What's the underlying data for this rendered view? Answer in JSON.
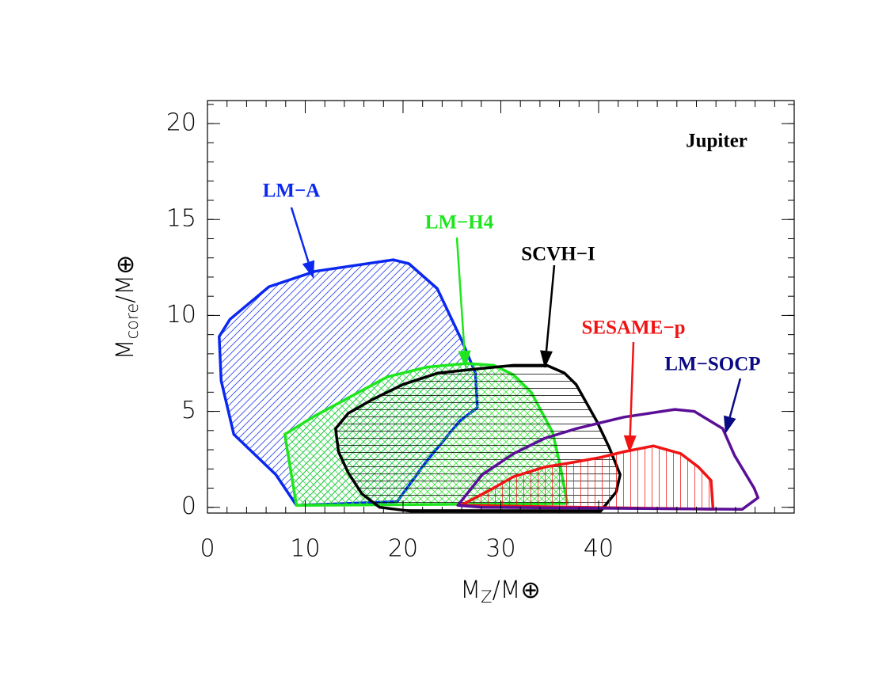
{
  "chart_data": {
    "type": "region",
    "annotation": "Jupiter",
    "xlabel": [
      "M",
      "Z",
      "/M⊕"
    ],
    "ylabel": [
      "M",
      "core",
      "/M⊕"
    ],
    "xlim": [
      0,
      60
    ],
    "xticks": [
      0,
      10,
      20,
      30,
      40
    ],
    "xminor": 2,
    "ylim": [
      -0.3,
      21.2
    ],
    "yticks": [
      0,
      5,
      10,
      15,
      20
    ],
    "yminor": 1,
    "series": [
      {
        "name": "LM−A",
        "color": "#0a28f0",
        "hatch": "/",
        "x": [
          1.2,
          1.4,
          2.7,
          7.0,
          9.1,
          19.4,
          22.4,
          25.8,
          27.6,
          27.4,
          26.0,
          23.5,
          20.6,
          19.0,
          11.0,
          6.3,
          2.3
        ],
        "y": [
          8.9,
          6.6,
          3.8,
          1.7,
          0.1,
          0.3,
          2.4,
          4.5,
          5.2,
          7.0,
          8.7,
          11.4,
          12.7,
          12.9,
          12.3,
          11.5,
          9.8
        ]
      },
      {
        "name": "LM−H4",
        "color": "#1ee61e",
        "hatch": "x",
        "x": [
          7.9,
          9.1,
          36.8,
          36.1,
          35.3,
          33.1,
          31.3,
          29.3,
          26.5,
          22.4,
          18.4,
          14.4,
          11.1
        ],
        "y": [
          3.8,
          0.1,
          0.2,
          2.1,
          3.9,
          6.0,
          6.9,
          7.4,
          7.5,
          7.3,
          6.8,
          5.7,
          4.8
        ]
      },
      {
        "name": "SCVH−I",
        "color": "#000000",
        "hatch": "-",
        "x": [
          13.1,
          13.4,
          14.4,
          15.8,
          17.6,
          20.8,
          40.2,
          41.8,
          42.2,
          41.1,
          39.8,
          37.7,
          36.5,
          34.7,
          31.3,
          27.3,
          23.6,
          20.0,
          16.8,
          14.4
        ],
        "y": [
          4.1,
          2.9,
          1.8,
          0.7,
          0.0,
          -0.2,
          -0.2,
          0.8,
          1.7,
          3.1,
          4.5,
          6.4,
          7.0,
          7.4,
          7.4,
          7.2,
          7.0,
          6.4,
          5.6,
          4.9
        ]
      },
      {
        "name": "SESAME−p",
        "color": "#f01414",
        "hatch": "|",
        "x": [
          25.9,
          51.7,
          51.5,
          50.2,
          48.4,
          45.6,
          42.6,
          40.2,
          36.9,
          34.5,
          31.3,
          28.9
        ],
        "y": [
          0.1,
          -0.1,
          1.4,
          2.1,
          2.8,
          3.2,
          2.9,
          2.6,
          2.3,
          2.1,
          1.6,
          0.9
        ]
      },
      {
        "name": "LM−SOCP",
        "color": "#5a0f96",
        "label_color": "#0a0a82",
        "hatch": null,
        "x": [
          25.6,
          28.1,
          54.7,
          56.3,
          55.9,
          53.9,
          52.7,
          49.8,
          47.8,
          42.6,
          37.7,
          34.5,
          31.3,
          28.1
        ],
        "y": [
          0.1,
          0.0,
          -0.1,
          0.5,
          1.0,
          2.7,
          4.1,
          5.0,
          5.1,
          4.7,
          4.1,
          3.6,
          2.8,
          1.7
        ]
      }
    ]
  }
}
